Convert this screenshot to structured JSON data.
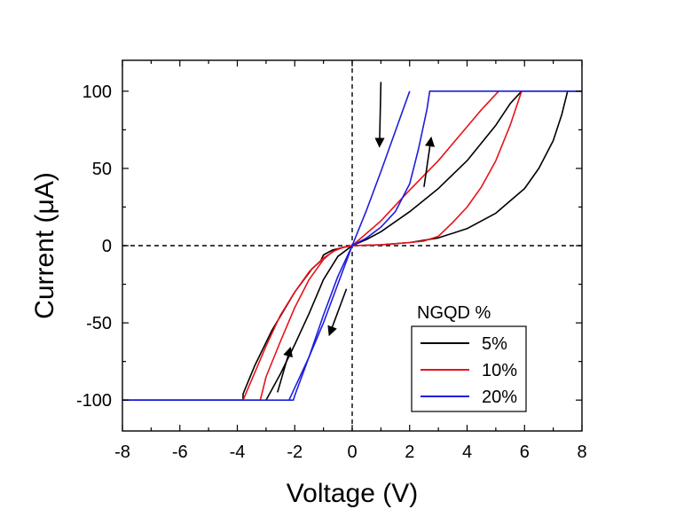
{
  "chart_data": {
    "type": "line",
    "title": "",
    "xlabel": "Voltage (V)",
    "ylabel": "Current (μA)",
    "xlim": [
      -8,
      8
    ],
    "ylim": [
      -120,
      120
    ],
    "xticks": [
      -8,
      -6,
      -4,
      -2,
      0,
      2,
      4,
      6,
      8
    ],
    "xtick_labels": [
      "-8",
      "-6",
      "-4",
      "-2",
      "0",
      "2",
      "4",
      "6",
      "8"
    ],
    "yticks": [
      -100,
      -50,
      0,
      50,
      100
    ],
    "ytick_labels": [
      "-100",
      "-50",
      "0",
      "50",
      "100"
    ],
    "grid": false,
    "reference_lines": [
      "x = 0 (dashed)",
      "y = 0 (dashed)"
    ],
    "legend": {
      "title": "NGQD %",
      "position": "bottom-right",
      "entries": [
        "5%",
        "10%",
        "20%"
      ]
    },
    "series": [
      {
        "name": "5%",
        "color": "#000000",
        "branches": [
          {
            "x": [
              0,
              1,
              2,
              3,
              4,
              5,
              6,
              6.5,
              7,
              7.3,
              7.5,
              8
            ],
            "y": [
              0,
              0.5,
              2,
              5,
              11,
              21,
              37,
              50,
              68,
              85,
              100,
              100
            ]
          },
          {
            "x": [
              5.9,
              5.5,
              5,
              4,
              3,
              2,
              1,
              0.5,
              0
            ],
            "y": [
              100,
              92,
              78,
              55,
              37,
              22,
              9,
              4,
              0
            ]
          },
          {
            "x": [
              0,
              -0.3,
              -0.7,
              -1,
              -1.1,
              -1.4,
              -2,
              -2.8,
              -3.4,
              -3.8,
              -3.8,
              -8
            ],
            "y": [
              0,
              -1,
              -3,
              -6,
              -10,
              -15,
              -30,
              -55,
              -78,
              -96,
              -100,
              -100
            ]
          },
          {
            "x": [
              -3.0,
              -2.5,
              -2,
              -1.5,
              -1,
              -0.5,
              0
            ],
            "y": [
              -100,
              -83,
              -64,
              -44,
              -22,
              -7,
              0
            ]
          }
        ]
      },
      {
        "name": "10%",
        "color": "#e8121a",
        "branches": [
          {
            "x": [
              0,
              1,
              2,
              2.5,
              3,
              3.5,
              4,
              4.5,
              5,
              5.5,
              5.9,
              8
            ],
            "y": [
              0,
              0.5,
              2,
              3,
              6,
              15,
              25,
              38,
              55,
              78,
              100,
              100
            ]
          },
          {
            "x": [
              5.1,
              4.5,
              4,
              3,
              2,
              1.5,
              1,
              0.5,
              0
            ],
            "y": [
              100,
              88,
              77,
              55,
              36,
              26,
              16,
              8,
              0
            ]
          },
          {
            "x": [
              0,
              -0.3,
              -0.7,
              -1,
              -1.5,
              -2,
              -2.5,
              -3,
              -3.2,
              -8
            ],
            "y": [
              0,
              -1,
              -4,
              -9,
              -22,
              -40,
              -62,
              -85,
              -100,
              -100
            ]
          },
          {
            "x": [
              -3.8,
              -3,
              -2.5,
              -2,
              -1.5,
              -1,
              -0.5,
              0
            ],
            "y": [
              -100,
              -65,
              -45,
              -30,
              -17,
              -8,
              -2,
              0
            ]
          }
        ]
      },
      {
        "name": "20%",
        "color": "#1d1de0",
        "branches": [
          {
            "x": [
              0,
              0.5,
              1,
              1.5,
              2,
              2.3,
              2.6,
              2.7,
              8
            ],
            "y": [
              0,
              5,
              12,
              22,
              40,
              62,
              88,
              100,
              100
            ]
          },
          {
            "x": [
              2.0,
              1.5,
              1,
              0.5,
              0
            ],
            "y": [
              100,
              74,
              48,
              23,
              0
            ]
          },
          {
            "x": [
              0,
              -0.5,
              -1,
              -1.5,
              -2.0,
              -2.05,
              -8
            ],
            "y": [
              0,
              -20,
              -45,
              -72,
              -97,
              -100,
              -100
            ]
          },
          {
            "x": [
              -2.2,
              -2,
              -1.5,
              -1,
              -0.5,
              0
            ],
            "y": [
              -100,
              -92,
              -72,
              -50,
              -25,
              0
            ]
          }
        ]
      }
    ],
    "annotations": [
      {
        "type": "arrow",
        "from": [
          1.0,
          106
        ],
        "to": [
          0.95,
          64
        ]
      },
      {
        "type": "arrow",
        "from": [
          2.5,
          38
        ],
        "to": [
          2.75,
          70
        ]
      },
      {
        "type": "arrow",
        "from": [
          -0.2,
          -28
        ],
        "to": [
          -0.8,
          -58
        ]
      },
      {
        "type": "arrow",
        "from": [
          -2.6,
          -95
        ],
        "to": [
          -2.15,
          -66
        ]
      }
    ]
  }
}
